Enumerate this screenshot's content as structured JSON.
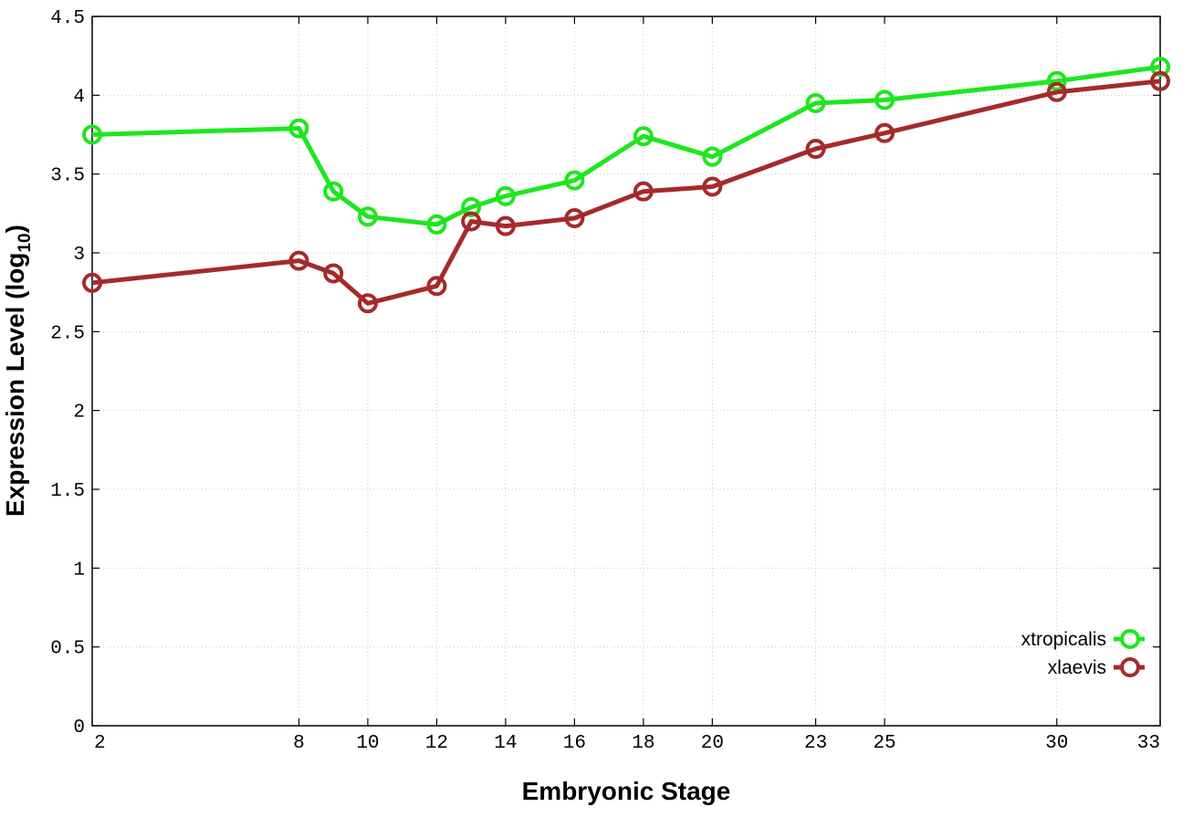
{
  "chart_data": {
    "type": "line",
    "xlabel": "Embryonic Stage",
    "ylabel_main": "Expression Level (log",
    "ylabel_sub": "10",
    "ylabel_end": ")",
    "xlim": [
      2,
      33
    ],
    "ylim": [
      0,
      4.5
    ],
    "x_ticks": [
      2,
      8,
      10,
      12,
      14,
      16,
      18,
      20,
      23,
      25,
      30,
      33
    ],
    "x_tick_labels": [
      "2",
      "8",
      "10",
      "12",
      "14",
      "16",
      "18",
      "20",
      "23",
      "25",
      "30",
      "33"
    ],
    "y_ticks": [
      0,
      0.5,
      1,
      1.5,
      2,
      2.5,
      3,
      3.5,
      4,
      4.5
    ],
    "y_tick_labels": [
      "0",
      "0.5",
      "1",
      "1.5",
      "2",
      "2.5",
      "3",
      "3.5",
      "4",
      "4.5"
    ],
    "grid": true,
    "legend_position": "bottom-right",
    "x": [
      2,
      8,
      9,
      10,
      12,
      13,
      14,
      16,
      18,
      20,
      23,
      25,
      30,
      33
    ],
    "series": [
      {
        "name": "xtropicalis",
        "color": "#1ee61e",
        "marker": "open-circle",
        "values": [
          3.75,
          3.79,
          3.39,
          3.23,
          3.18,
          3.29,
          3.36,
          3.46,
          3.74,
          3.61,
          3.95,
          3.97,
          4.09,
          4.18
        ]
      },
      {
        "name": "xlaevis",
        "color": "#a52a2a",
        "marker": "open-circle",
        "values": [
          2.81,
          2.95,
          2.87,
          2.68,
          2.79,
          3.2,
          3.17,
          3.22,
          3.39,
          3.42,
          3.66,
          3.76,
          4.02,
          4.09
        ]
      }
    ]
  }
}
